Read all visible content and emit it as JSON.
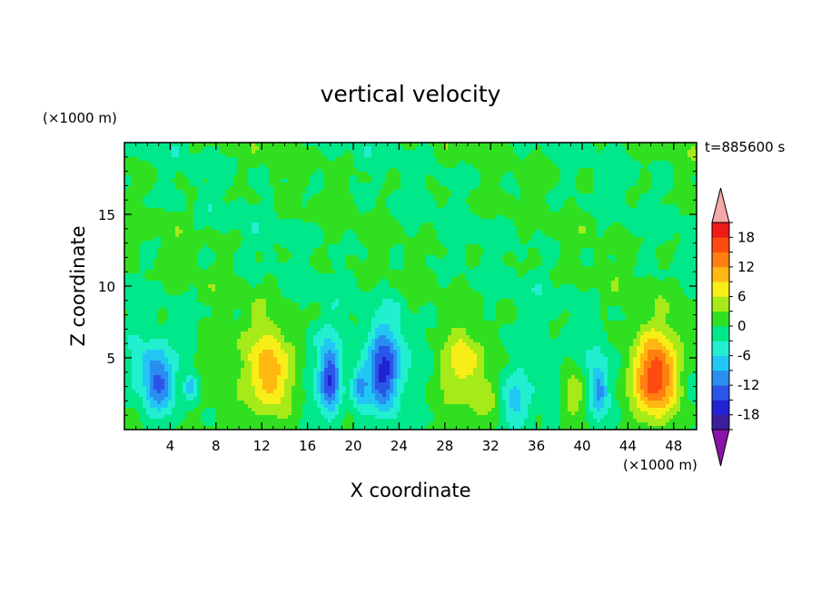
{
  "chart_data": {
    "type": "heatmap",
    "title": "vertical velocity",
    "xlabel": "X coordinate",
    "ylabel": "Z coordinate",
    "x_unit": "(×1000 m)",
    "y_unit": "(×1000 m)",
    "time_label": "t=885600 s",
    "xlim": [
      0,
      50
    ],
    "ylim": [
      0,
      20
    ],
    "x_ticks": [
      4,
      8,
      12,
      16,
      20,
      24,
      28,
      32,
      36,
      40,
      44,
      48
    ],
    "y_ticks": [
      5,
      10,
      15
    ],
    "grid": false,
    "colorbar": {
      "levels": [
        -21,
        -18,
        -15,
        -12,
        -9,
        -6,
        -3,
        0,
        3,
        6,
        9,
        12,
        15,
        18,
        21
      ],
      "labels": [
        18,
        12,
        6,
        0,
        -6,
        -12,
        -18
      ],
      "colors": [
        "#8a14a8",
        "#3c1e9a",
        "#2222d2",
        "#2a55e8",
        "#2a8ef0",
        "#22c6f4",
        "#22eed0",
        "#00e88a",
        "#30e020",
        "#a6ea1a",
        "#f6ee16",
        "#ffb812",
        "#ff8010",
        "#ff4a12",
        "#ee1a18",
        "#f4a8a8"
      ]
    },
    "features": [
      {
        "x": 3.0,
        "z": 3.3,
        "sx": 0.9,
        "sz": 1.6,
        "w": -12
      },
      {
        "x": 5.8,
        "z": 3.0,
        "sx": 0.4,
        "sz": 0.7,
        "w": -9
      },
      {
        "x": 1.5,
        "z": 4.5,
        "sx": 1.2,
        "sz": 1.4,
        "w": -4
      },
      {
        "x": 8.5,
        "z": 3.5,
        "sx": 1.4,
        "sz": 2.5,
        "w": 1.5
      },
      {
        "x": 12.8,
        "z": 3.7,
        "sx": 1.3,
        "sz": 1.9,
        "w": 9
      },
      {
        "x": 12.2,
        "z": 5.2,
        "sx": 1.8,
        "sz": 2.4,
        "w": 3
      },
      {
        "x": 18.0,
        "z": 3.4,
        "sx": 0.6,
        "sz": 1.6,
        "w": -12
      },
      {
        "x": 17.5,
        "z": 4.5,
        "sx": 1.3,
        "sz": 2.3,
        "w": -4
      },
      {
        "x": 20.6,
        "z": 3.0,
        "sx": 0.5,
        "sz": 1.0,
        "w": -9
      },
      {
        "x": 22.6,
        "z": 3.7,
        "sx": 0.9,
        "sz": 1.8,
        "w": -13
      },
      {
        "x": 23.2,
        "z": 5.6,
        "sx": 1.3,
        "sz": 2.4,
        "w": -5
      },
      {
        "x": 26.0,
        "z": 4.0,
        "sx": 1.0,
        "sz": 2.0,
        "w": -2
      },
      {
        "x": 29.5,
        "z": 3.9,
        "sx": 2.0,
        "sz": 2.2,
        "w": 5
      },
      {
        "x": 29.8,
        "z": 4.8,
        "sx": 0.9,
        "sz": 1.0,
        "w": 4
      },
      {
        "x": 32.2,
        "z": 1.7,
        "sx": 0.8,
        "sz": 1.2,
        "w": 3
      },
      {
        "x": 34.0,
        "z": 1.8,
        "sx": 1.0,
        "sz": 1.3,
        "w": -6
      },
      {
        "x": 34.5,
        "z": 4.5,
        "sx": 1.8,
        "sz": 2.5,
        "w": -2
      },
      {
        "x": 37.5,
        "z": 3.0,
        "sx": 0.8,
        "sz": 1.4,
        "w": -3
      },
      {
        "x": 39.3,
        "z": 2.6,
        "sx": 1.0,
        "sz": 1.4,
        "w": 6
      },
      {
        "x": 41.4,
        "z": 2.7,
        "sx": 0.6,
        "sz": 1.4,
        "w": -9
      },
      {
        "x": 41.0,
        "z": 4.0,
        "sx": 1.2,
        "sz": 2.0,
        "w": -3
      },
      {
        "x": 46.5,
        "z": 3.6,
        "sx": 1.3,
        "sz": 1.9,
        "w": 14
      },
      {
        "x": 46.2,
        "z": 4.2,
        "sx": 1.8,
        "sz": 2.4,
        "w": 4
      },
      {
        "x": 49.5,
        "z": 3.0,
        "sx": 0.7,
        "sz": 1.2,
        "w": -3
      }
    ]
  }
}
